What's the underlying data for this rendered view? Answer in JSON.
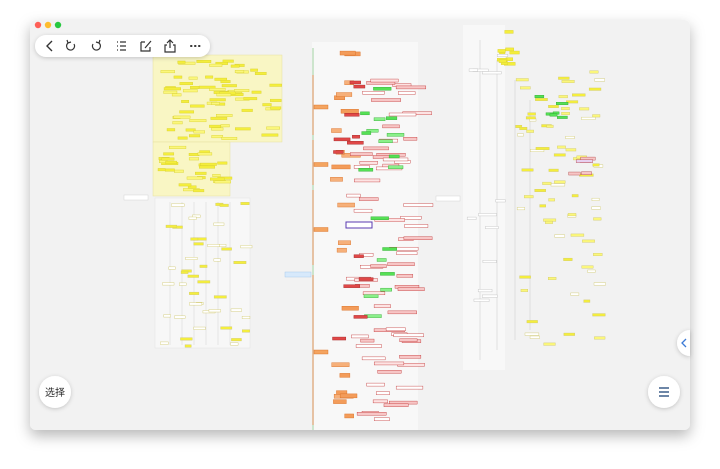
{
  "select_button": "选择"
}
